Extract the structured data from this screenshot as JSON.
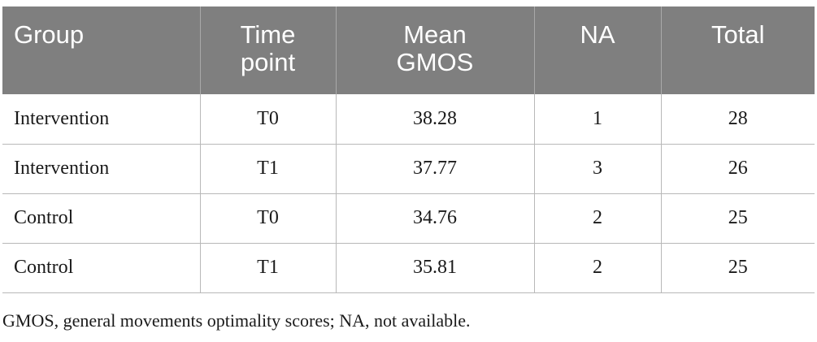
{
  "table": {
    "headers": [
      {
        "line1": "Group",
        "line2": ""
      },
      {
        "line1": "Time",
        "line2": "point"
      },
      {
        "line1": "Mean",
        "line2": "GMOS"
      },
      {
        "line1": "NA",
        "line2": ""
      },
      {
        "line1": "Total",
        "line2": ""
      }
    ],
    "rows": [
      [
        "Intervention",
        "T0",
        "38.28",
        "1",
        "28"
      ],
      [
        "Intervention",
        "T1",
        "37.77",
        "3",
        "26"
      ],
      [
        "Control",
        "T0",
        "34.76",
        "2",
        "25"
      ],
      [
        "Control",
        "T1",
        "35.81",
        "2",
        "25"
      ]
    ]
  },
  "footnote": "GMOS, general movements optimality scores; NA, not available."
}
